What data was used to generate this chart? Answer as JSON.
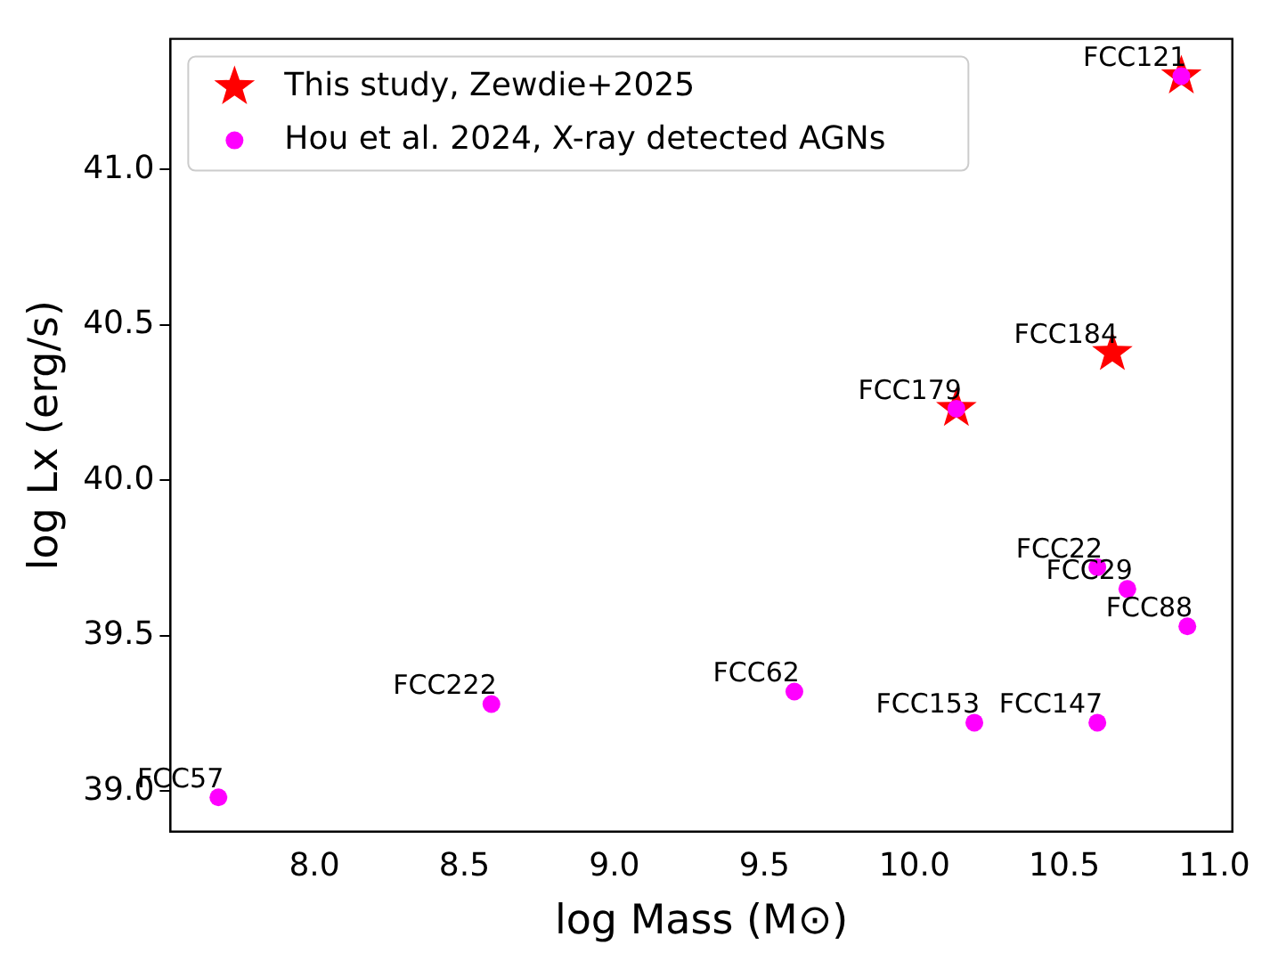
{
  "chart_data": {
    "type": "scatter",
    "xlabel": "log Mass (M⊙)",
    "ylabel": "log Lx (erg/s)",
    "xlim": [
      7.52,
      11.06
    ],
    "ylim": [
      38.87,
      41.42
    ],
    "xticks": [
      {
        "value": 8,
        "label": "8.0"
      },
      {
        "value": 8.5,
        "label": "8.5"
      },
      {
        "value": 9,
        "label": "9.0"
      },
      {
        "value": 9.5,
        "label": "9.5"
      },
      {
        "value": 10,
        "label": "10.0"
      },
      {
        "value": 10.5,
        "label": "10.5"
      },
      {
        "value": 11,
        "label": "11.0"
      }
    ],
    "yticks": [
      {
        "value": 39,
        "label": "39.0"
      },
      {
        "value": 39.5,
        "label": "39.5"
      },
      {
        "value": 40,
        "label": "40.0"
      },
      {
        "value": 40.5,
        "label": "40.5"
      },
      {
        "value": 41,
        "label": "41.0"
      }
    ],
    "grid": false,
    "legend": "top left",
    "series": [
      {
        "name": "This study, Zewdie+2025",
        "color": "#ff0000",
        "marker": "star",
        "x": [
          10.89,
          10.66,
          10.14
        ],
        "values": [
          41.3,
          40.41,
          40.23
        ]
      },
      {
        "name": "Hou et al. 2024, X-ray detected AGNs",
        "color": "#ff00ff",
        "marker": "circle",
        "x": [
          10.89,
          10.14,
          10.61,
          10.71,
          10.91,
          10.61,
          10.2,
          9.6,
          8.59,
          7.68
        ],
        "values": [
          41.3,
          40.23,
          39.72,
          39.65,
          39.53,
          39.22,
          39.22,
          39.32,
          39.28,
          38.98
        ]
      }
    ],
    "annotations": [
      {
        "text": "FCC121",
        "x": 10.89,
        "y": 41.3
      },
      {
        "text": "FCC184",
        "x": 10.66,
        "y": 40.41
      },
      {
        "text": "FCC179",
        "x": 10.14,
        "y": 40.23
      },
      {
        "text": "FCC22",
        "x": 10.61,
        "y": 39.72
      },
      {
        "text": "FCC29",
        "x": 10.71,
        "y": 39.65
      },
      {
        "text": "FCC88",
        "x": 10.91,
        "y": 39.53
      },
      {
        "text": "FCC147",
        "x": 10.61,
        "y": 39.22
      },
      {
        "text": "FCC153",
        "x": 10.2,
        "y": 39.22
      },
      {
        "text": "FCC62",
        "x": 9.6,
        "y": 39.32
      },
      {
        "text": "FCC222",
        "x": 8.59,
        "y": 39.28
      },
      {
        "text": "FCC57",
        "x": 7.68,
        "y": 38.98
      }
    ]
  }
}
